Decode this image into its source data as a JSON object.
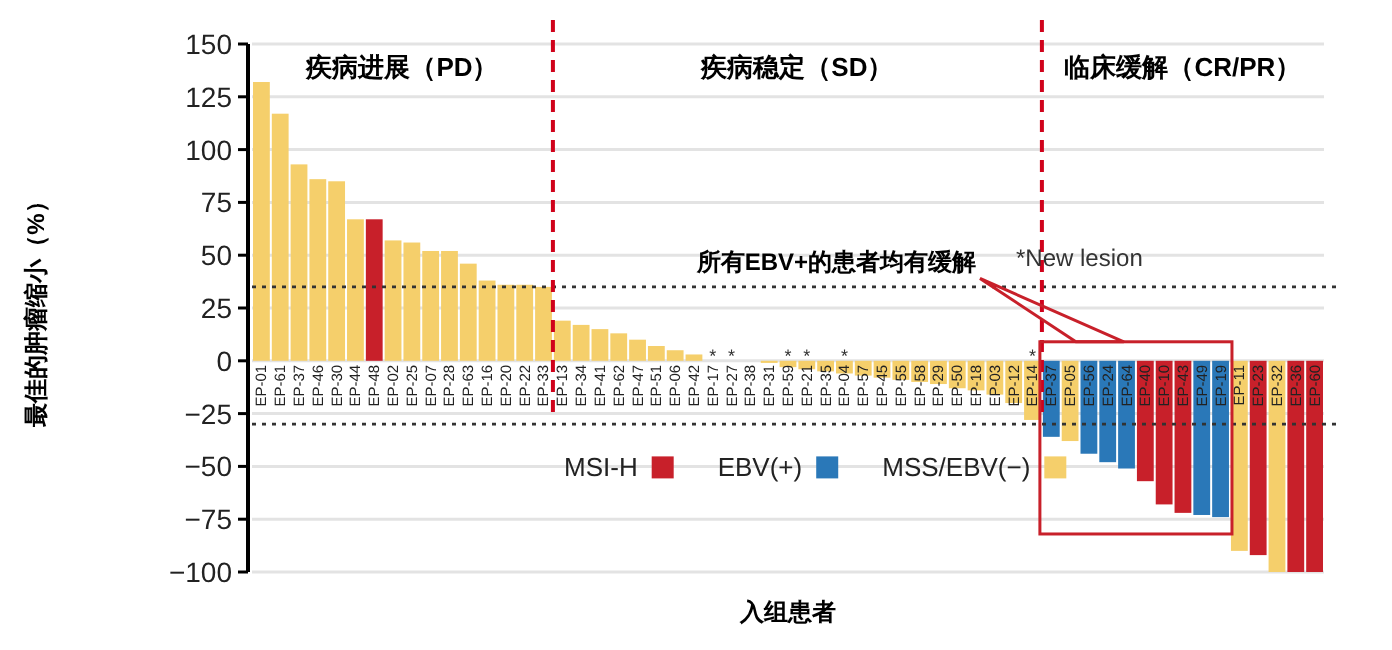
{
  "chart_data": {
    "type": "bar",
    "ylabel": "最佳的肿瘤缩小（%）",
    "xlabel": "入组患者",
    "categories": [
      "EP-01",
      "EP-61",
      "EP-37",
      "EP-46",
      "EP-30",
      "EP-44",
      "EP-48",
      "EP-02",
      "EP-25",
      "EP-07",
      "EP-28",
      "EP-63",
      "EP-16",
      "EP-20",
      "EP-22",
      "EP-33",
      "EP-13",
      "EP-34",
      "EP-41",
      "EP-62",
      "EP-47",
      "EP-51",
      "EP-06",
      "EP-42",
      "EP-17",
      "EP-27",
      "EP-38",
      "EP-31",
      "EP-59",
      "EP-21",
      "EP-35",
      "EP-04",
      "EP-57",
      "EP-45",
      "EP-55",
      "EP-58",
      "EP-29",
      "EP-50",
      "EP-18",
      "EP-03",
      "EP-12",
      "EP-14",
      "EP-37",
      "EP-05",
      "EP-56",
      "EP-24",
      "EP-64",
      "EP-40",
      "EP-10",
      "EP-43",
      "EP-49",
      "EP-19",
      "EP-11",
      "EP-23",
      "EP-32",
      "EP-36",
      "EP-60"
    ],
    "series": [
      {
        "name": "MSI-H",
        "color": "#c8202a",
        "values": [
          null,
          null,
          null,
          null,
          null,
          null,
          67,
          null,
          null,
          null,
          null,
          null,
          null,
          null,
          null,
          null,
          null,
          null,
          null,
          null,
          null,
          null,
          null,
          null,
          null,
          null,
          null,
          null,
          null,
          null,
          null,
          null,
          null,
          null,
          null,
          null,
          null,
          null,
          null,
          null,
          null,
          null,
          null,
          null,
          null,
          null,
          null,
          -57,
          -68,
          -72,
          null,
          null,
          null,
          -92,
          null,
          -100,
          -100
        ]
      },
      {
        "name": "EBV(+)",
        "color": "#2a78b8",
        "values": [
          null,
          null,
          null,
          null,
          null,
          null,
          null,
          null,
          null,
          null,
          null,
          null,
          null,
          null,
          null,
          null,
          null,
          null,
          null,
          null,
          null,
          null,
          null,
          null,
          null,
          null,
          null,
          null,
          null,
          null,
          null,
          null,
          null,
          null,
          null,
          null,
          null,
          null,
          null,
          null,
          null,
          null,
          -36,
          null,
          -44,
          -48,
          -51,
          null,
          null,
          null,
          -73,
          -74,
          null,
          null,
          null,
          null,
          null
        ]
      },
      {
        "name": "MSS/EBV(−)",
        "color": "#f5cf6b",
        "values": [
          132,
          117,
          93,
          86,
          85,
          67,
          null,
          57,
          56,
          52,
          52,
          46,
          38,
          36,
          36,
          35,
          19,
          17,
          15,
          13,
          10,
          7,
          5,
          3,
          0,
          0,
          0,
          -1,
          -3,
          -4,
          -5,
          -6,
          -7,
          -8,
          -9,
          -10,
          -11,
          -13,
          -14,
          -16,
          -20,
          -28,
          null,
          -38,
          null,
          null,
          null,
          null,
          null,
          null,
          null,
          null,
          -90,
          null,
          -100,
          null,
          null
        ]
      }
    ],
    "ylim": [
      -100,
      150
    ],
    "yticks": [
      {
        "value": -100,
        "label": "−100"
      },
      {
        "value": -75,
        "label": "−75"
      },
      {
        "value": -50,
        "label": "−50"
      },
      {
        "value": -25,
        "label": "−25"
      },
      0,
      25,
      50,
      75,
      100,
      125,
      150
    ],
    "grid": "y",
    "legend": "bottom",
    "ref_lines": [
      {
        "axis": "y",
        "value": 35,
        "color": "#333333",
        "line_style": "dotted"
      },
      {
        "axis": "y",
        "value": -30,
        "color": "#333333",
        "line_style": "dotted"
      }
    ],
    "annotations": [
      "疾病进展（PD）",
      "疾病稳定（SD）",
      "临床缓解（CR/PR）",
      "所有EBV+的患者均有缓解",
      "*New lesion",
      {
        "text": "*",
        "x": "EP-17",
        "y": 3
      },
      {
        "text": "*",
        "x": "EP-27",
        "y": 3
      },
      {
        "text": "*",
        "x": "EP-59",
        "y": 3
      },
      {
        "text": "*",
        "x": "EP-21",
        "y": 3
      },
      {
        "text": "*",
        "x": "EP-04",
        "y": 3
      },
      {
        "text": "*",
        "x": "EP-14",
        "y": 3
      }
    ]
  }
}
